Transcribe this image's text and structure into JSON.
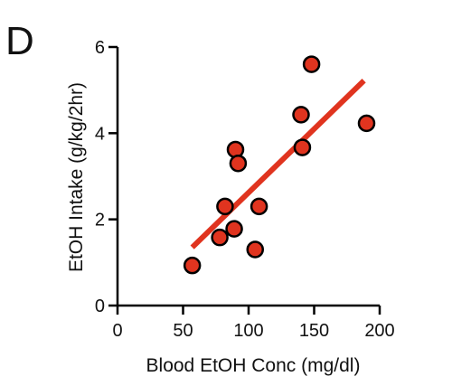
{
  "panel_label": "D",
  "colors": {
    "marker_fill": "#e0341f",
    "marker_stroke": "#000000",
    "fit_line": "#e0341f",
    "axis": "#000000"
  },
  "chart_data": {
    "type": "scatter",
    "xlabel": "Blood EtOH Conc (mg/dl)",
    "ylabel": "EtOH Intake (g/kg/2hr)",
    "xlim": [
      0,
      200
    ],
    "ylim": [
      0,
      6
    ],
    "xticks": [
      0,
      50,
      100,
      150,
      200
    ],
    "yticks": [
      0,
      2,
      4,
      6
    ],
    "grid": false,
    "points": [
      {
        "x": 57,
        "y": 0.93
      },
      {
        "x": 78,
        "y": 1.58
      },
      {
        "x": 82,
        "y": 2.3
      },
      {
        "x": 89,
        "y": 1.78
      },
      {
        "x": 90,
        "y": 3.62
      },
      {
        "x": 92,
        "y": 3.3
      },
      {
        "x": 105,
        "y": 1.3
      },
      {
        "x": 108,
        "y": 2.3
      },
      {
        "x": 140,
        "y": 4.43
      },
      {
        "x": 141,
        "y": 3.67
      },
      {
        "x": 148,
        "y": 5.6
      },
      {
        "x": 190,
        "y": 4.23
      }
    ],
    "fit_line": {
      "x": [
        57,
        188
      ],
      "y": [
        1.35,
        5.22
      ]
    }
  }
}
